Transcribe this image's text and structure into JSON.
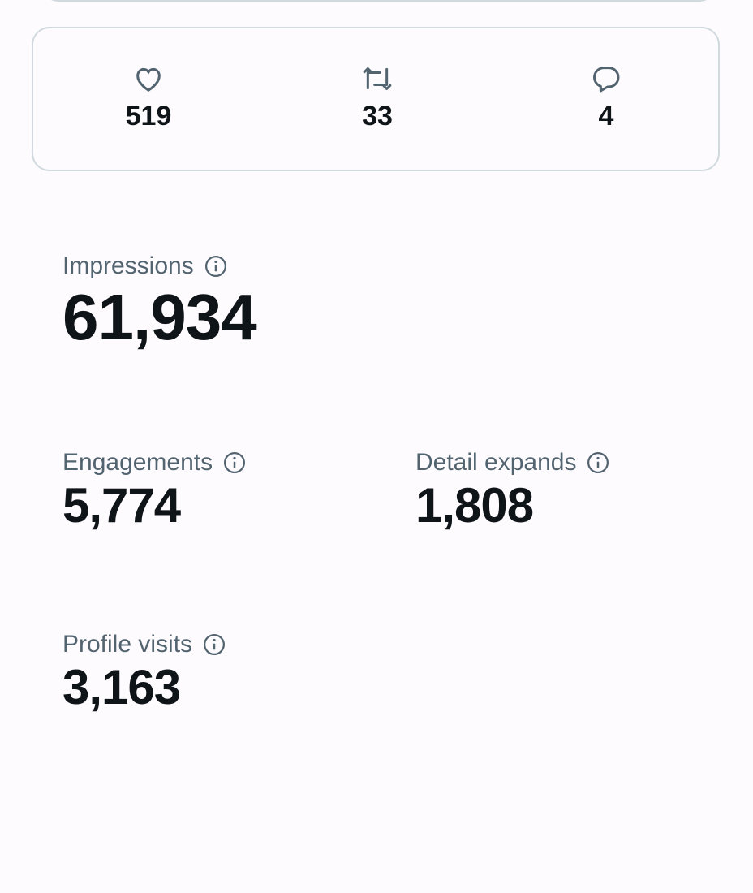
{
  "engagement_bar": {
    "likes": "519",
    "reposts": "33",
    "replies": "4"
  },
  "metrics": [
    {
      "label": "Impressions",
      "value": "61,934"
    },
    {
      "label": "Engagements",
      "value": "5,774"
    },
    {
      "label": "Detail expands",
      "value": "1,808"
    },
    {
      "label": "Profile visits",
      "value": "3,163"
    }
  ]
}
